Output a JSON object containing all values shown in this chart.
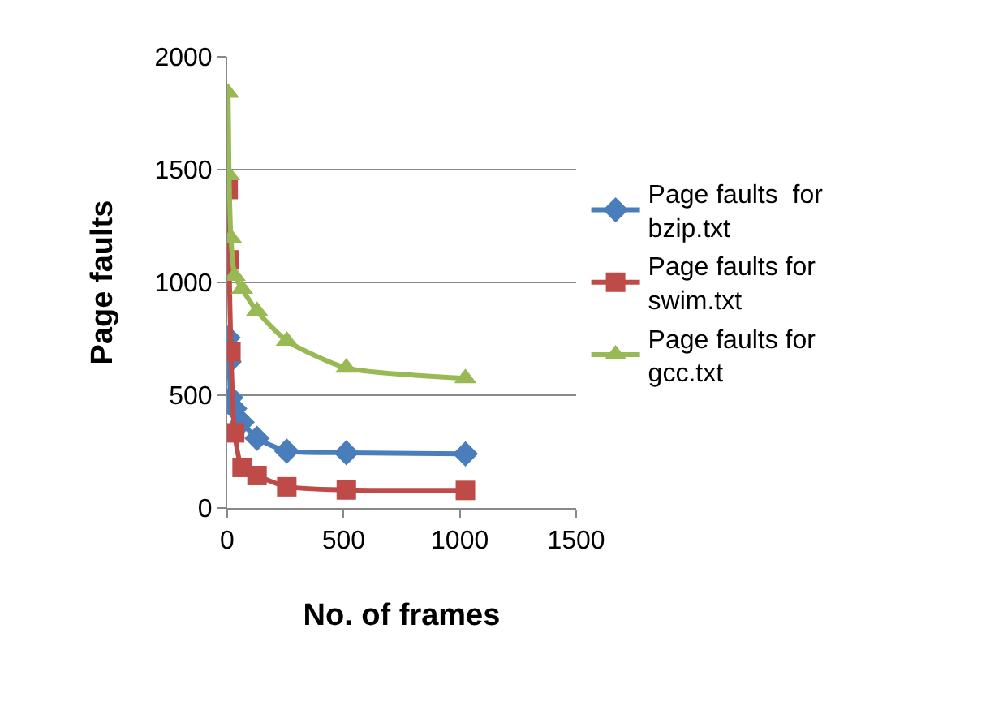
{
  "chart_data": {
    "type": "line",
    "xlabel": "No. of frames",
    "ylabel": "Page faults",
    "x": [
      4,
      8,
      16,
      32,
      64,
      128,
      256,
      512,
      1024
    ],
    "series": [
      {
        "name": "Page faults  for bzip.txt",
        "color": "#4a7ebb",
        "marker": "diamond",
        "values": [
          755,
          648,
          489,
          441,
          380,
          309,
          252,
          245,
          240
        ]
      },
      {
        "name": "Page faults for swim.txt",
        "color": "#be4b48",
        "marker": "square",
        "values": [
          1412,
          1100,
          693,
          333,
          180,
          144,
          94,
          80,
          78
        ]
      },
      {
        "name": "Page faults for gcc.txt",
        "color": "#98b954",
        "marker": "triangle",
        "values": [
          1840,
          1475,
          1197,
          1029,
          971,
          873,
          741,
          621,
          575
        ]
      }
    ],
    "xlim": [
      0,
      1500
    ],
    "xticks": [
      0,
      500,
      1000,
      1500
    ],
    "ylim": [
      0,
      2000
    ],
    "yticks": [
      0,
      500,
      1000,
      1500,
      2000
    ],
    "grid": "y",
    "legend": "right",
    "line_style": "solid"
  }
}
